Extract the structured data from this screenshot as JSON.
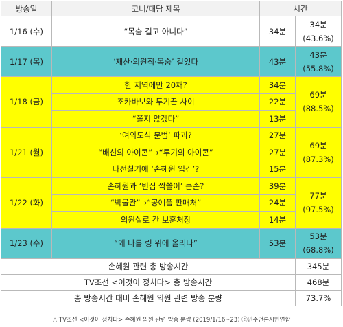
{
  "header": {
    "date": "방송일",
    "title": "코너/대담 제목",
    "time": "시간"
  },
  "days": [
    {
      "date": "1/16 (수)",
      "color": "#ffffff",
      "total": "34분",
      "share": "(43.6%)",
      "rows": [
        {
          "title": "“목숨 걸고 아니다”",
          "min": "34분"
        }
      ]
    },
    {
      "date": "1/17 (목)",
      "color": "#5cc8cc",
      "total": "43분",
      "share": "(55.8%)",
      "rows": [
        {
          "title": "‘재산·의원직·목숨’ 걸었다",
          "min": "43분"
        }
      ]
    },
    {
      "date": "1/18 (금)",
      "color": "#ffff00",
      "total": "69분",
      "share": "(88.5%)",
      "rows": [
        {
          "title": "한 지역에만 20채?",
          "min": "34분"
        },
        {
          "title": "조카바보와 투기꾼 사이",
          "min": "22분"
        },
        {
          "title": "“쫄지 않겠다”",
          "min": "13분"
        }
      ]
    },
    {
      "date": "1/21 (월)",
      "color": "#ffff00",
      "total": "69분",
      "share": "(87.3%)",
      "rows": [
        {
          "title": "‘여의도식 문법’ 파괴?",
          "min": "27분"
        },
        {
          "title": "“배신의 아이콘”→“투기의 아이콘”",
          "min": "27분"
        },
        {
          "title": "나전칠기에 ‘손혜원 입김’?",
          "min": "15분"
        }
      ]
    },
    {
      "date": "1/22 (화)",
      "color": "#ffff00",
      "total": "77분",
      "share": "(97.5%)",
      "rows": [
        {
          "title": "손혜원과 ‘빈집 싹쓸이’ 큰손?",
          "min": "39분"
        },
        {
          "title": "“박물관”→“공예품 판매처”",
          "min": "24분"
        },
        {
          "title": "의원실로 간 보훈처장",
          "min": "14분"
        }
      ]
    },
    {
      "date": "1/23 (수)",
      "color": "#5cc8cc",
      "total": "53분",
      "share": "(68.8%)",
      "rows": [
        {
          "title": "“왜 나를 링 위에 올리나”",
          "min": "53분"
        }
      ]
    }
  ],
  "summary": [
    {
      "label": "손혜원 관련 총 방송시간",
      "value": "345분"
    },
    {
      "label": "TV조선 <이것이 정치다> 총 방송시간",
      "value": "468분"
    },
    {
      "label": "총 방송시간 대비 손혜원 의원 관련 방송 분량",
      "value": "73.7%"
    }
  ],
  "caption": "△ TV조선 <이것이 정치다> 손혜원 의원 관련 방송 분량 (2019/1/16~23) ⓒ민주언론시민연합"
}
